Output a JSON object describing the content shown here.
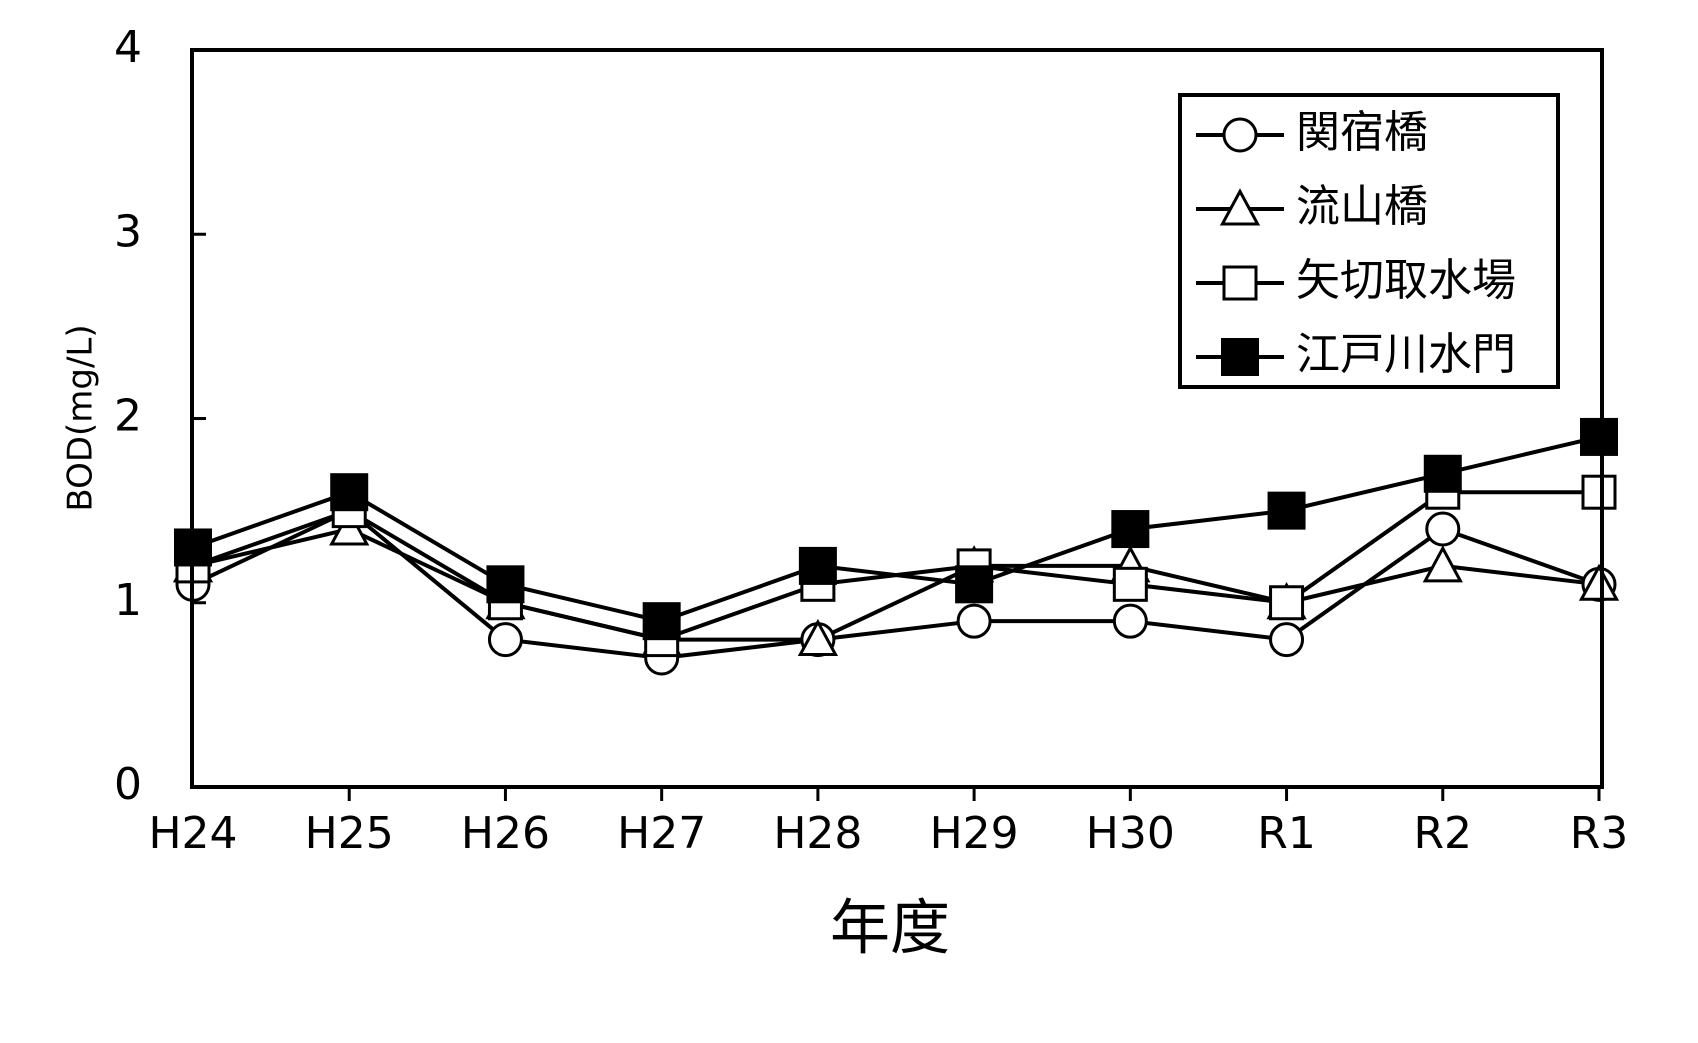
{
  "chart_data": {
    "type": "line",
    "title": "",
    "xlabel": "年度",
    "ylabel": "BOD(mg/L)",
    "ylim": [
      0,
      4
    ],
    "yticks": [
      0,
      1,
      2,
      3,
      4
    ],
    "categories": [
      "H24",
      "H25",
      "H26",
      "H27",
      "H28",
      "H29",
      "H30",
      "R1",
      "R2",
      "R3"
    ],
    "grid": false,
    "legend_position": "top-right",
    "series": [
      {
        "name": "関宿橋",
        "marker": "circle-open",
        "values": [
          1.1,
          1.5,
          0.8,
          0.7,
          0.8,
          0.9,
          0.9,
          0.8,
          1.4,
          1.1
        ]
      },
      {
        "name": "流山橋",
        "marker": "triangle-open",
        "values": [
          1.2,
          1.4,
          1.0,
          0.8,
          0.8,
          1.2,
          1.2,
          1.0,
          1.2,
          1.1
        ]
      },
      {
        "name": "矢切取水場",
        "marker": "square-open",
        "values": [
          1.2,
          1.5,
          1.0,
          0.8,
          1.1,
          1.2,
          1.1,
          1.0,
          1.6,
          1.6
        ]
      },
      {
        "name": "江戸川水門",
        "marker": "square-filled",
        "values": [
          1.3,
          1.6,
          1.1,
          0.9,
          1.2,
          1.1,
          1.4,
          1.5,
          1.7,
          1.9
        ]
      }
    ],
    "colors": {
      "line": "#000000",
      "background": "#ffffff"
    }
  }
}
